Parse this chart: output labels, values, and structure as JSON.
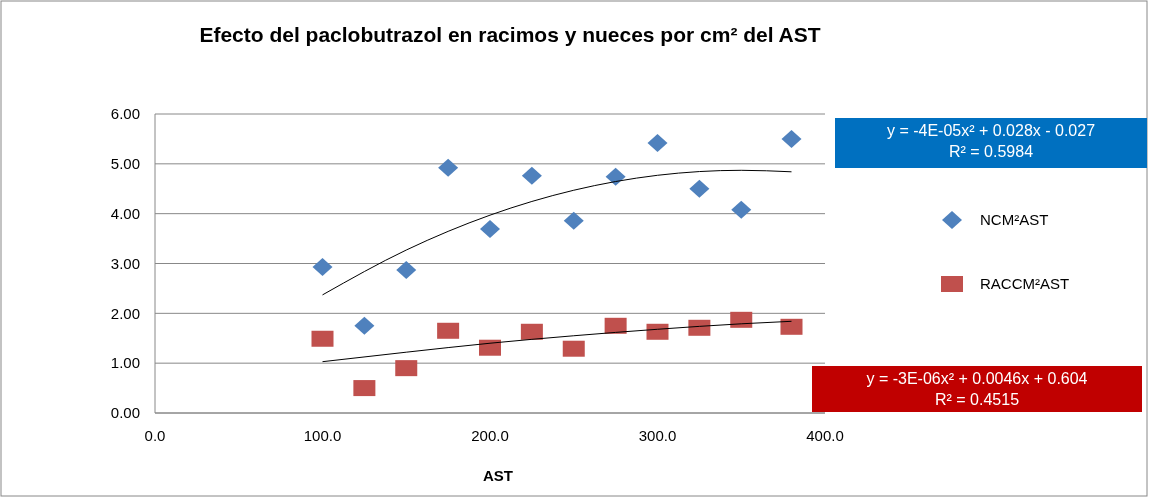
{
  "chart_data": {
    "type": "scatter",
    "title": "Efecto del paclobutrazol en racimos y nueces por cm² del AST",
    "xlabel": "AST",
    "x": [
      100,
      125,
      150,
      175,
      200,
      225,
      250,
      275,
      300,
      325,
      350,
      380
    ],
    "series": [
      {
        "name": "NCM²AST",
        "color": "#4f81bd",
        "marker": "diamond",
        "values": [
          2.93,
          1.75,
          2.87,
          4.92,
          3.69,
          4.76,
          3.86,
          4.74,
          5.42,
          4.5,
          4.08,
          5.5
        ]
      },
      {
        "name": "RACCM²AST",
        "color": "#c0504d",
        "marker": "square",
        "values": [
          1.49,
          0.5,
          0.9,
          1.65,
          1.31,
          1.63,
          1.29,
          1.75,
          1.63,
          1.71,
          1.87,
          1.73
        ]
      },
      {
        "type": "line",
        "color": "#000000",
        "x": [
          100,
          150,
          200,
          250,
          300,
          350,
          380
        ],
        "values": [
          2.37,
          3.27,
          3.97,
          4.47,
          4.77,
          4.87,
          4.84
        ]
      },
      {
        "type": "line",
        "color": "#000000",
        "x": [
          100,
          150,
          200,
          250,
          300,
          350,
          380
        ],
        "values": [
          1.03,
          1.22,
          1.4,
          1.55,
          1.68,
          1.79,
          1.84
        ]
      }
    ],
    "xlim": [
      0,
      400
    ],
    "xticks": [
      {
        "value": 0,
        "label": "0.0"
      },
      {
        "value": 100,
        "label": "100.0"
      },
      {
        "value": 200,
        "label": "200.0"
      },
      {
        "value": 300,
        "label": "300.0"
      },
      {
        "value": 400,
        "label": "400.0"
      }
    ],
    "ylim": [
      0,
      6
    ],
    "yticks": [
      {
        "value": 0,
        "label": "0.00"
      },
      {
        "value": 1,
        "label": "1.00"
      },
      {
        "value": 2,
        "label": "2.00"
      },
      {
        "value": 3,
        "label": "3.00"
      },
      {
        "value": 4,
        "label": "4.00"
      },
      {
        "value": 5,
        "label": "5.00"
      },
      {
        "value": 6,
        "label": "6.00"
      }
    ],
    "grid": "y",
    "legend": "right",
    "annotations": [
      "y = -4E-05x² + 0.028x - 0.027",
      "R² = 0.5984",
      "y = -3E-06x² + 0.0046x + 0.604",
      "R² = 0.4515"
    ]
  }
}
